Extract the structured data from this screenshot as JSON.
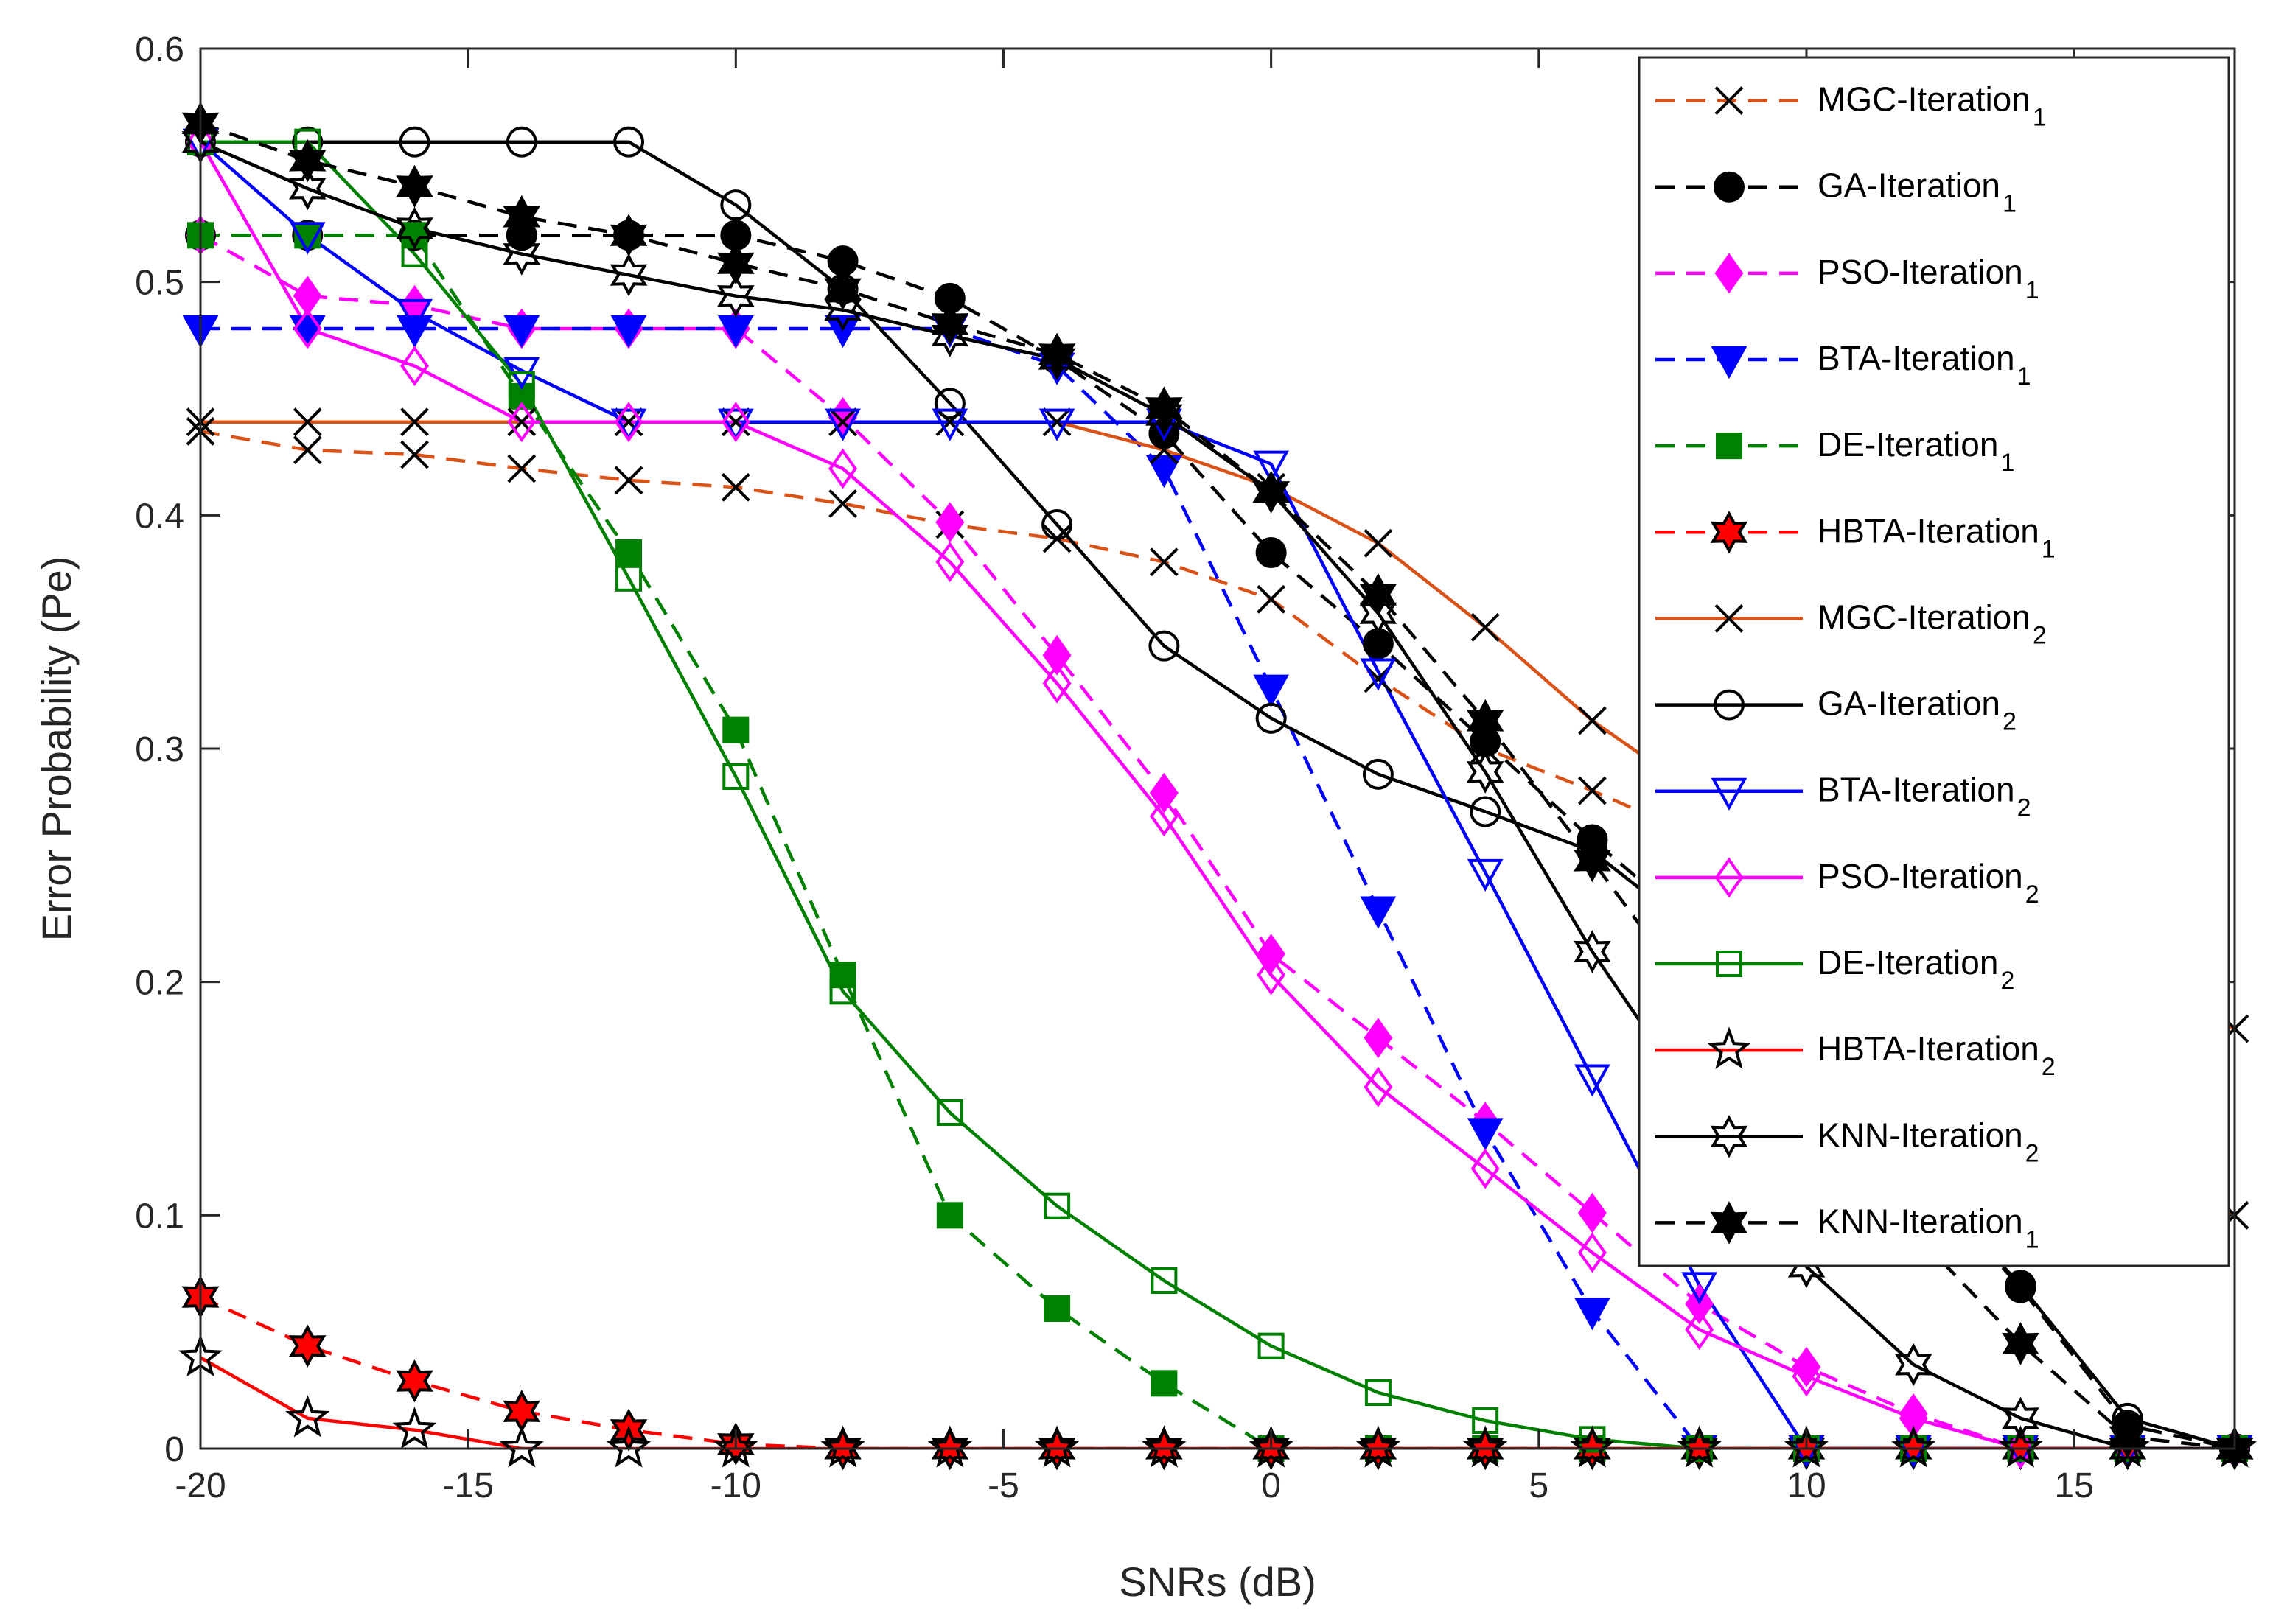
{
  "chart_data": {
    "type": "line",
    "title": "",
    "xlabel": "SNRs (dB)",
    "ylabel": "Error Probability (Pe)",
    "xlim": [
      -20,
      18
    ],
    "ylim": [
      0,
      0.6
    ],
    "xticks": [
      -20,
      -15,
      -10,
      -5,
      0,
      5,
      10,
      15
    ],
    "yticks": [
      0,
      0.1,
      0.2,
      0.3,
      0.4,
      0.5,
      0.6
    ],
    "xtick_labels": [
      "-20",
      "-15",
      "-10",
      "-5",
      "0",
      "5",
      "10",
      "15"
    ],
    "ytick_labels": [
      "0",
      "0.1",
      "0.2",
      "0.3",
      "0.4",
      "0.5",
      "0.6"
    ],
    "grid": false,
    "legend_position": "top-right",
    "x": [
      -20,
      -18,
      -16,
      -14,
      -12,
      -10,
      -8,
      -6,
      -4,
      -2,
      0,
      2,
      4,
      6,
      8,
      10,
      12,
      14,
      16,
      18
    ],
    "series": [
      {
        "name": "MGC-Iteration",
        "subscript": "1",
        "color": "#D95319",
        "line": "dashed",
        "marker": "x",
        "marker_fill": "none",
        "values": [
          0.436,
          0.428,
          0.426,
          0.42,
          0.415,
          0.412,
          0.405,
          0.396,
          0.39,
          0.38,
          0.364,
          0.33,
          0.3,
          0.282,
          0.262,
          0.24,
          0.21,
          0.17,
          0.13,
          0.1
        ]
      },
      {
        "name": "GA-Iteration",
        "subscript": "1",
        "color": "#000000",
        "line": "dashed",
        "marker": "circle",
        "marker_fill": "#000000",
        "values": [
          0.52,
          0.52,
          0.52,
          0.52,
          0.52,
          0.52,
          0.509,
          0.493,
          0.467,
          0.435,
          0.384,
          0.345,
          0.303,
          0.261,
          0.222,
          0.175,
          0.12,
          0.069,
          0.01,
          0.0
        ]
      },
      {
        "name": "PSO-Iteration",
        "subscript": "1",
        "color": "#FF00FF",
        "line": "dashed",
        "marker": "diamond",
        "marker_fill": "#FF00FF",
        "values": [
          0.52,
          0.494,
          0.49,
          0.48,
          0.48,
          0.48,
          0.442,
          0.397,
          0.34,
          0.281,
          0.212,
          0.176,
          0.14,
          0.101,
          0.062,
          0.035,
          0.015,
          0.0,
          0.0,
          0.0
        ]
      },
      {
        "name": "BTA-Iteration",
        "subscript": "1",
        "color": "#0000FF",
        "line": "dashed",
        "marker": "triangle-down",
        "marker_fill": "#0000FF",
        "values": [
          0.48,
          0.48,
          0.48,
          0.48,
          0.48,
          0.48,
          0.48,
          0.48,
          0.464,
          0.42,
          0.326,
          0.231,
          0.136,
          0.059,
          0.0,
          0.0,
          0.0,
          0.0,
          0.0,
          0.0
        ]
      },
      {
        "name": "DE-Iteration",
        "subscript": "1",
        "color": "#008000",
        "line": "dashed",
        "marker": "square",
        "marker_fill": "#008000",
        "values": [
          0.52,
          0.52,
          0.52,
          0.451,
          0.384,
          0.308,
          0.203,
          0.1,
          0.06,
          0.028,
          0.0,
          0.0,
          0.0,
          0.0,
          0.0,
          0.0,
          0.0,
          0.0,
          0.0,
          0.0
        ]
      },
      {
        "name": "HBTA-Iteration",
        "subscript": "1",
        "color": "#FF0000",
        "line": "dashed",
        "marker": "hexagram",
        "marker_fill": "#FF0000",
        "values": [
          0.065,
          0.044,
          0.029,
          0.016,
          0.008,
          0.002,
          0.0,
          0.0,
          0.0,
          0.0,
          0.0,
          0.0,
          0.0,
          0.0,
          0.0,
          0.0,
          0.0,
          0.0,
          0.0,
          0.0
        ]
      },
      {
        "name": "MGC-Iteration",
        "subscript": "2",
        "color": "#D95319",
        "line": "solid",
        "marker": "x",
        "marker_fill": "none",
        "values": [
          0.44,
          0.44,
          0.44,
          0.44,
          0.44,
          0.44,
          0.44,
          0.44,
          0.44,
          0.428,
          0.412,
          0.388,
          0.352,
          0.312,
          0.28,
          0.26,
          0.24,
          0.22,
          0.2,
          0.18
        ]
      },
      {
        "name": "GA-Iteration",
        "subscript": "2",
        "color": "#000000",
        "line": "solid",
        "marker": "circle",
        "marker_fill": "none",
        "values": [
          0.56,
          0.56,
          0.56,
          0.56,
          0.56,
          0.533,
          0.497,
          0.448,
          0.396,
          0.344,
          0.313,
          0.289,
          0.273,
          0.256,
          0.22,
          0.17,
          0.12,
          0.07,
          0.013,
          0.0
        ]
      },
      {
        "name": "BTA-Iteration",
        "subscript": "2",
        "color": "#0000FF",
        "line": "solid",
        "marker": "triangle-down",
        "marker_fill": "none",
        "values": [
          0.56,
          0.52,
          0.487,
          0.462,
          0.44,
          0.44,
          0.44,
          0.44,
          0.44,
          0.44,
          0.422,
          0.333,
          0.247,
          0.159,
          0.07,
          0.0,
          0.0,
          0.0,
          0.0,
          0.0
        ]
      },
      {
        "name": "PSO-Iteration",
        "subscript": "2",
        "color": "#FF00FF",
        "line": "solid",
        "marker": "diamond",
        "marker_fill": "none",
        "values": [
          0.56,
          0.48,
          0.464,
          0.44,
          0.44,
          0.44,
          0.42,
          0.38,
          0.328,
          0.271,
          0.203,
          0.155,
          0.12,
          0.084,
          0.051,
          0.031,
          0.013,
          0.0,
          0.0,
          0.0
        ]
      },
      {
        "name": "DE-Iteration",
        "subscript": "2",
        "color": "#008000",
        "line": "solid",
        "marker": "square",
        "marker_fill": "none",
        "values": [
          0.56,
          0.56,
          0.512,
          0.456,
          0.373,
          0.288,
          0.196,
          0.144,
          0.104,
          0.072,
          0.044,
          0.024,
          0.012,
          0.004,
          0.0,
          0.0,
          0.0,
          0.0,
          0.0,
          0.0
        ]
      },
      {
        "name": "HBTA-Iteration",
        "subscript": "2",
        "color": "#FF0000",
        "line": "solid",
        "marker": "pentagram",
        "marker_fill": "none",
        "values": [
          0.039,
          0.013,
          0.008,
          0.0,
          0.0,
          0.0,
          0.0,
          0.0,
          0.0,
          0.0,
          0.0,
          0.0,
          0.0,
          0.0,
          0.0,
          0.0,
          0.0,
          0.0,
          0.0,
          0.0
        ]
      },
      {
        "name": "KNN-Iteration",
        "subscript": "2",
        "color": "#000000",
        "line": "solid",
        "marker": "hexagram",
        "marker_fill": "none",
        "values": [
          0.56,
          0.54,
          0.523,
          0.512,
          0.503,
          0.494,
          0.488,
          0.477,
          0.467,
          0.443,
          0.41,
          0.358,
          0.29,
          0.213,
          0.146,
          0.078,
          0.036,
          0.013,
          0.0,
          0.0
        ]
      },
      {
        "name": "KNN-Iteration",
        "subscript": "1",
        "color": "#000000",
        "line": "dashed",
        "marker": "hexagram",
        "marker_fill": "#000000",
        "values": [
          0.568,
          0.552,
          0.541,
          0.528,
          0.52,
          0.508,
          0.497,
          0.482,
          0.469,
          0.446,
          0.41,
          0.366,
          0.312,
          0.252,
          0.19,
          0.14,
          0.093,
          0.045,
          0.005,
          0.0
        ]
      }
    ]
  }
}
